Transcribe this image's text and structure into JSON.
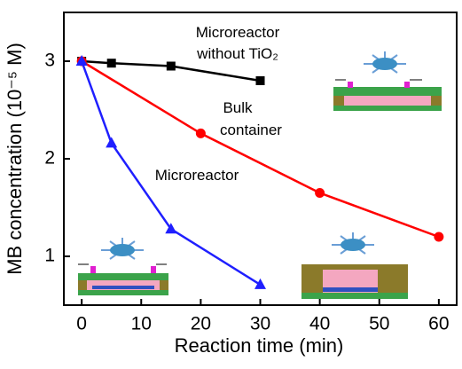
{
  "chart_data": {
    "type": "line",
    "xlabel": "Reaction time (min)",
    "ylabel": "MB concentration (10⁻⁵ M)",
    "annotations": [
      "Microreactor",
      "without TiO₂",
      "Bulk",
      "container",
      "Microreactor"
    ],
    "series": [
      {
        "color": "#000000",
        "marker": "square",
        "x": [
          0,
          5,
          15,
          30
        ],
        "values": [
          3.0,
          2.98,
          2.95,
          2.8
        ]
      },
      {
        "color": "#ff0000",
        "marker": "circle",
        "x": [
          0,
          20,
          40,
          60
        ],
        "values": [
          3.0,
          2.26,
          1.65,
          1.2
        ]
      },
      {
        "color": "#1f1fff",
        "marker": "triangle",
        "x": [
          0,
          5,
          15,
          30
        ],
        "values": [
          3.0,
          2.16,
          1.28,
          0.71
        ]
      }
    ],
    "xlim": [
      -3,
      63
    ],
    "xticks": [
      0,
      10,
      20,
      30,
      40,
      50,
      60
    ],
    "ylim": [
      0.5,
      3.5
    ],
    "yticks": [
      1,
      2,
      3
    ]
  }
}
